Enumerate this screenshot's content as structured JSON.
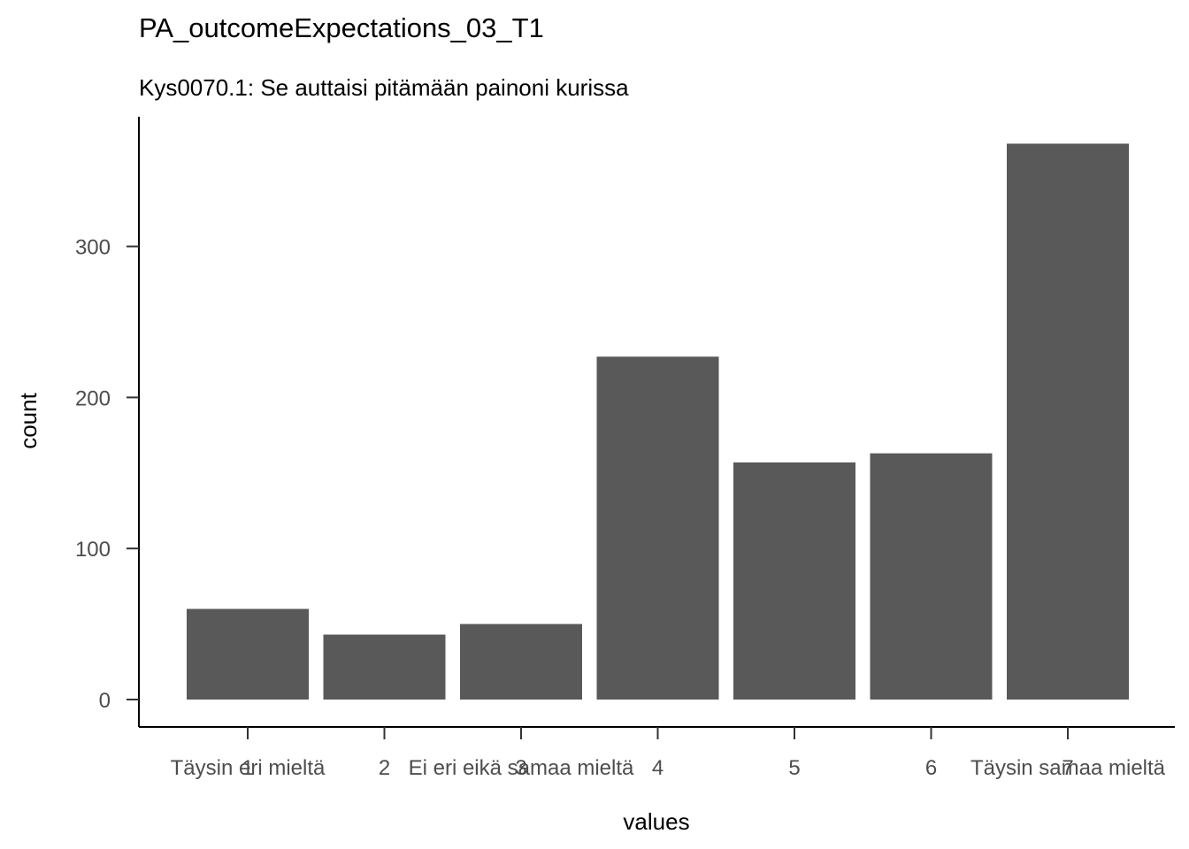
{
  "chart_data": {
    "type": "bar",
    "title": "PA_outcomeExpectations_03_T1",
    "subtitle": "Kys0070.1: Se auttaisi pitämään painoni kurissa",
    "xlabel": "values",
    "ylabel": "count",
    "categories": [
      "1",
      "2",
      "3",
      "4",
      "5",
      "6",
      "7"
    ],
    "category_labels": [
      [
        "Täysin eri mieltä",
        "1"
      ],
      [
        "2"
      ],
      [
        "3",
        "Ei eri eikä samaa mieltä"
      ],
      [
        "4"
      ],
      [
        "5"
      ],
      [
        "6"
      ],
      [
        "Täysin samaa mieltä",
        "7"
      ]
    ],
    "values": [
      60,
      43,
      50,
      227,
      157,
      163,
      368
    ],
    "ylim": [
      0,
      390
    ],
    "yticks": [
      0,
      100,
      200,
      300
    ],
    "grid": false,
    "legend": "none",
    "bar_color": "#595959"
  }
}
